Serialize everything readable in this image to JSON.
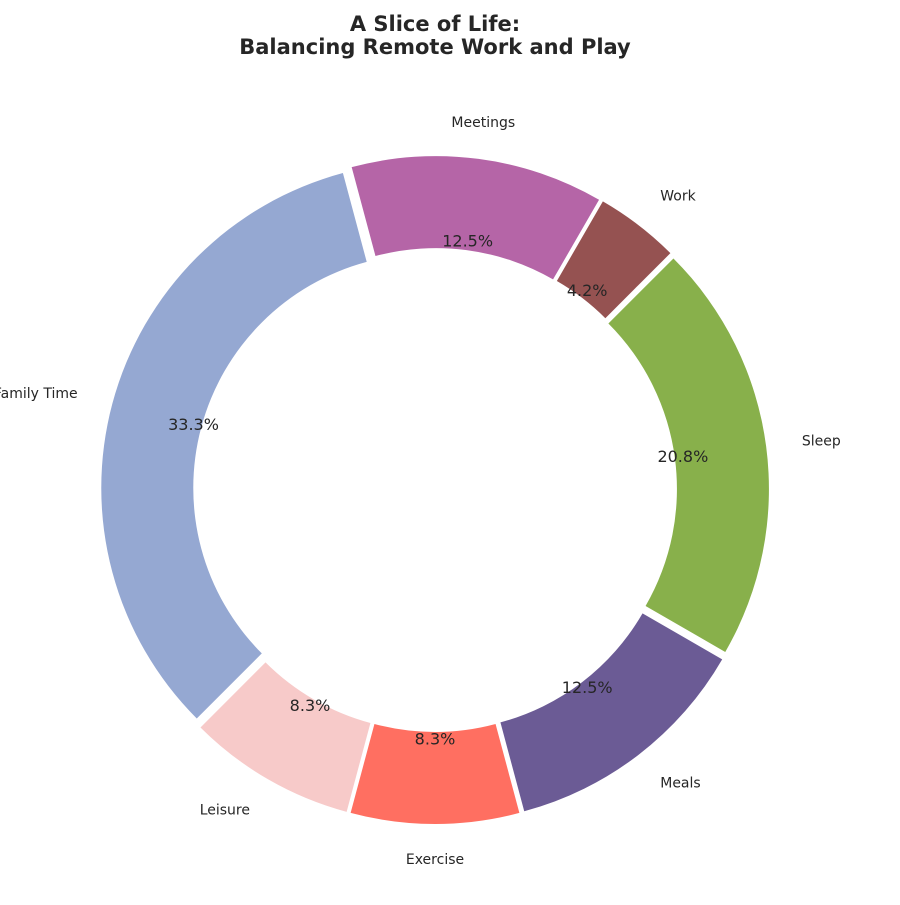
{
  "chart_data": {
    "type": "pie",
    "variant": "donut",
    "title_lines": [
      "A Slice of Life:",
      "Balancing Remote Work and Play"
    ],
    "categories": [
      "Work",
      "Meetings",
      "Family Time",
      "Leisure",
      "Exercise",
      "Meals",
      "Sleep"
    ],
    "values": [
      1,
      3,
      8,
      2,
      2,
      3,
      5
    ],
    "percent_labels": [
      "4.2%",
      "12.5%",
      "33.3%",
      "8.3%",
      "8.3%",
      "12.5%",
      "20.8%"
    ],
    "colors": [
      "#955251",
      "#B565A7",
      "#95A8D2",
      "#F7CAC9",
      "#FF6F61",
      "#6B5B95",
      "#88B04B"
    ],
    "start_angle_deg": 45,
    "direction": "counterclockwise",
    "legend": "none"
  }
}
